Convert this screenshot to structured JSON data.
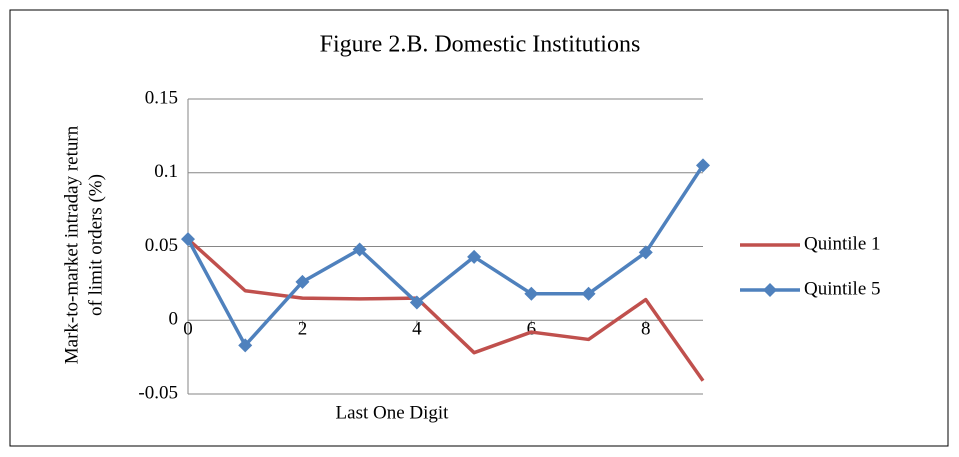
{
  "chart_data": {
    "type": "line",
    "title": "Figure 2.B. Domestic Institutions",
    "xlabel": "Last One Digit",
    "ylabel": [
      "Mark-to-market intraday return",
      "of limit orders (%)"
    ],
    "x": [
      0,
      1,
      2,
      3,
      4,
      5,
      6,
      7,
      8,
      9
    ],
    "series": [
      {
        "name": "Quintile 1",
        "color": "#c0504d",
        "values": [
          0.055,
          0.02,
          0.015,
          0.0145,
          0.015,
          -0.022,
          -0.008,
          -0.013,
          0.014,
          -0.041
        ]
      },
      {
        "name": "Quintile 5",
        "color": "#4f81bd",
        "marker": "diamond",
        "values": [
          0.055,
          -0.017,
          0.026,
          0.048,
          0.012,
          0.043,
          0.018,
          0.018,
          0.046,
          0.105
        ]
      }
    ],
    "xlim": [
      0,
      9
    ],
    "xticks": [
      0,
      2,
      4,
      6,
      8
    ],
    "ylim": [
      -0.05,
      0.15
    ],
    "yticks": [
      -0.05,
      0,
      0.05,
      0.1,
      0.15
    ],
    "grid": true,
    "legend": "right"
  }
}
